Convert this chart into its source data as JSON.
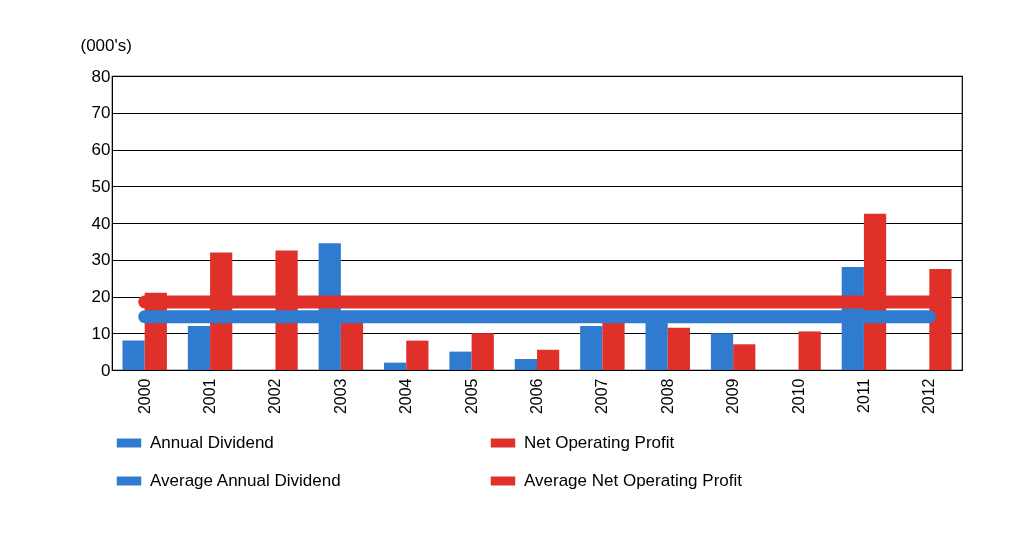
{
  "chart_data": {
    "type": "bar",
    "ylabel": "(000's)",
    "categories": [
      "2000",
      "2001",
      "2002",
      "2003",
      "2004",
      "2005",
      "2006",
      "2007",
      "2008",
      "2009",
      "2010",
      "2011",
      "2012"
    ],
    "series": [
      {
        "name": "Annual Dividend",
        "color": "#2f7bd0",
        "values": [
          8,
          12,
          null,
          34.5,
          2,
          5,
          3,
          12,
          13,
          10,
          null,
          28,
          null
        ]
      },
      {
        "name": "Net Operating Profit",
        "color": "#e0302a",
        "values": [
          21,
          32,
          32.5,
          13,
          8,
          10,
          5.5,
          13,
          11.5,
          7,
          10.5,
          42.5,
          27.5
        ]
      },
      {
        "name": "Average Annual Dividend",
        "type": "line",
        "color": "#2f7bd0",
        "values": [
          14.5,
          14.5,
          14.5,
          14.5,
          14.5,
          14.5,
          14.5,
          14.5,
          14.5,
          14.5,
          14.5,
          14.5,
          14.5
        ]
      },
      {
        "name": "Average Net Operating Profit",
        "type": "line",
        "color": "#e0302a",
        "values": [
          18.5,
          18.5,
          18.5,
          18.5,
          18.5,
          18.5,
          18.5,
          18.5,
          18.5,
          18.5,
          18.5,
          18.5,
          18.5
        ]
      }
    ],
    "ylim": [
      0,
      80
    ],
    "yticks": [
      0,
      10,
      20,
      30,
      40,
      50,
      60,
      70,
      80
    ],
    "grid": "y",
    "legend": "bottom",
    "line_style": "solid"
  }
}
